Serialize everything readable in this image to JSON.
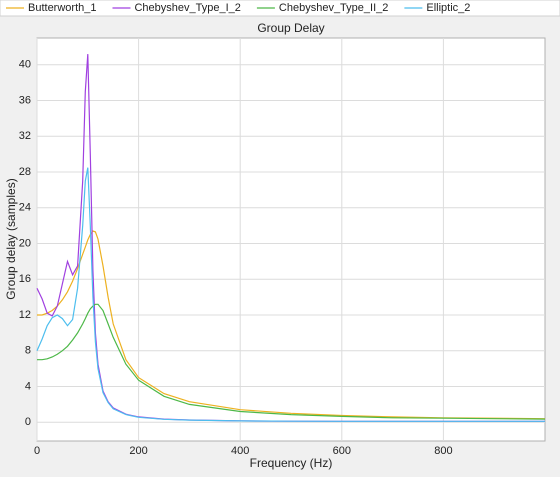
{
  "chart_data": {
    "type": "line",
    "title": "Group Delay",
    "x_label": "Frequency (Hz)",
    "y_label": "Group delay (samples)",
    "x": [
      0,
      10,
      20,
      30,
      40,
      50,
      60,
      70,
      80,
      90,
      95,
      100,
      105,
      110,
      115,
      120,
      130,
      140,
      150,
      175,
      200,
      250,
      300,
      400,
      500,
      600,
      700,
      800,
      900,
      1000
    ],
    "series": [
      {
        "name": "Butterworth_1",
        "color": "#edb120",
        "values": [
          12.0,
          12.0,
          12.2,
          12.5,
          13,
          13.7,
          14.6,
          15.8,
          17.2,
          18.8,
          19.6,
          20.4,
          21,
          21.4,
          21.3,
          20.5,
          17.5,
          14,
          11,
          7,
          5,
          3.2,
          2.3,
          1.4,
          1,
          0.75,
          0.6,
          0.5,
          0.45,
          0.4
        ]
      },
      {
        "name": "Chebyshev_Type_I_2",
        "color": "#a040e0",
        "values": [
          15,
          13.8,
          12.2,
          11.9,
          13,
          15.5,
          18,
          16.5,
          17.5,
          27,
          37,
          41.2,
          30,
          17,
          10,
          6.5,
          3.5,
          2.3,
          1.6,
          0.9,
          0.6,
          0.35,
          0.25,
          0.15,
          0.12,
          0.1,
          0.1,
          0.1,
          0.1,
          0.1
        ]
      },
      {
        "name": "Chebyshev_Type_II_2",
        "color": "#4db848",
        "values": [
          7,
          7,
          7.1,
          7.3,
          7.6,
          8,
          8.5,
          9.2,
          10,
          11,
          11.6,
          12.2,
          12.7,
          13,
          13.2,
          13.2,
          12.5,
          11,
          9.5,
          6.5,
          4.7,
          2.9,
          2,
          1.2,
          0.85,
          0.65,
          0.5,
          0.45,
          0.4,
          0.35
        ]
      },
      {
        "name": "Elliptic_2",
        "color": "#4dbeee",
        "values": [
          8,
          9.3,
          10.8,
          11.7,
          12,
          11.6,
          10.8,
          11.5,
          15,
          22,
          27,
          28.5,
          22,
          14,
          9,
          6,
          3.3,
          2.2,
          1.5,
          0.85,
          0.55,
          0.33,
          0.24,
          0.15,
          0.12,
          0.1,
          0.1,
          0.1,
          0.1,
          0.1
        ]
      }
    ],
    "xlim": [
      0,
      1000
    ],
    "xticks": [
      0,
      200,
      400,
      600,
      800
    ],
    "ylim": [
      -2.1,
      43
    ],
    "yticks": [
      0,
      4,
      8,
      12,
      16,
      20,
      24,
      28,
      32,
      36,
      40
    ],
    "grid": true
  }
}
